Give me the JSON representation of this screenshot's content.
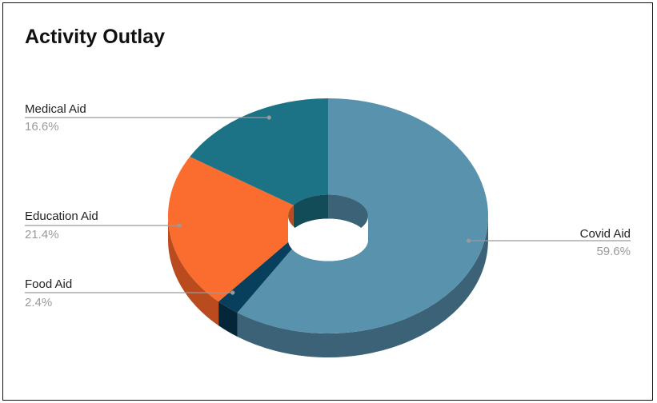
{
  "chart_data": {
    "type": "pie",
    "style": "3d-donut",
    "title": "Activity Outlay",
    "legend": "none",
    "slices": [
      {
        "label": "Covid Aid",
        "percent_label": "59.6%",
        "value": 59.6,
        "color": "#5892ad",
        "side_color": "#3b6276"
      },
      {
        "label": "Food Aid",
        "percent_label": "2.4%",
        "value": 2.4,
        "color": "#073f5c",
        "side_color": "#042638"
      },
      {
        "label": "Education Aid",
        "percent_label": "21.4%",
        "value": 21.4,
        "color": "#fa6d2e",
        "side_color": "#b94b1f"
      },
      {
        "label": "Medical Aid",
        "percent_label": "16.6%",
        "value": 16.6,
        "color": "#1c7385",
        "side_color": "#114c58"
      }
    ]
  }
}
